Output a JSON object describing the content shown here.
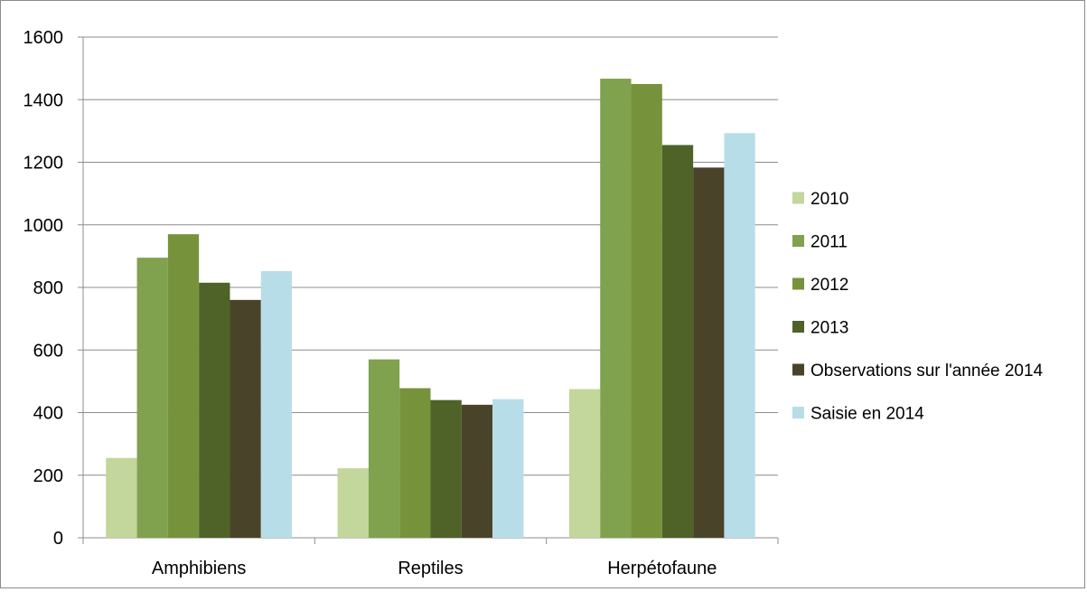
{
  "chart_data": {
    "type": "bar",
    "title": "",
    "xlabel": "",
    "ylabel": "",
    "categories": [
      "Amphibiens",
      "Reptiles",
      "Herpétofaune"
    ],
    "series": [
      {
        "name": "2010",
        "color": "#c3d69b",
        "values": [
          255,
          222,
          475
        ]
      },
      {
        "name": "2011",
        "color": "#80a14e",
        "values": [
          895,
          570,
          1467
        ]
      },
      {
        "name": "2012",
        "color": "#76933c",
        "values": [
          970,
          478,
          1450
        ]
      },
      {
        "name": "2013",
        "color": "#4f6228",
        "values": [
          815,
          440,
          1255
        ]
      },
      {
        "name": "Observations sur l'année 2014",
        "color": "#494429",
        "values": [
          760,
          425,
          1183
        ]
      },
      {
        "name": "Saisie en 2014",
        "color": "#b7dde8",
        "values": [
          852,
          443,
          1293
        ]
      }
    ],
    "ylim": [
      0,
      1600
    ],
    "yticks": [
      0,
      200,
      400,
      600,
      800,
      1000,
      1200,
      1400,
      1600
    ],
    "grid": true,
    "legend_position": "right"
  }
}
